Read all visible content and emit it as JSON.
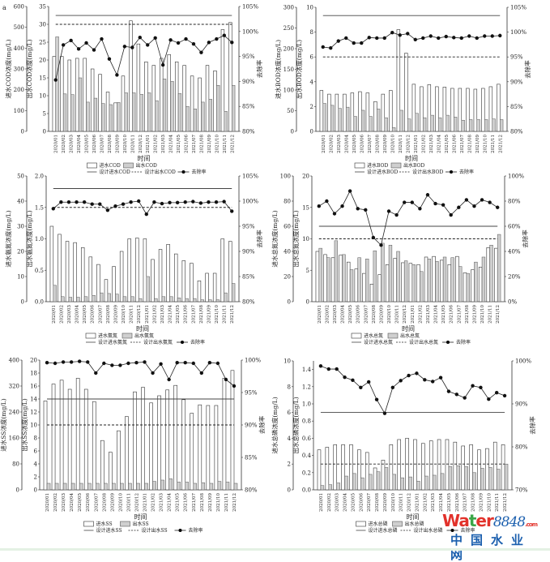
{
  "panel_label": "a",
  "watermark": {
    "brand": "water8848.com",
    "brand_cn": "中国水业网"
  },
  "colors": {
    "influent_bar": "#ffffff",
    "effluent_bar": "#cfcfcf",
    "lines": "#333333",
    "watermark_red": "#e2322b",
    "watermark_green": "#3aa548",
    "watermark_blue": "#1b5fae"
  },
  "chart_data": [
    {
      "type": "bar+line",
      "indicator": "COD",
      "categories": [
        "2020/01",
        "2020/02",
        "2020/03",
        "2020/04",
        "2020/05",
        "2020/06",
        "2020/07",
        "2020/08",
        "2020/09",
        "2020/10",
        "2020/11",
        "2020/12",
        "2021/01",
        "2021/02",
        "2021/03",
        "2021/04",
        "2021/05",
        "2021/06",
        "2021/07",
        "2021/08",
        "2021/09",
        "2021/10",
        "2021/11",
        "2021/12"
      ],
      "xlabel": "时间",
      "y_outer": {
        "label": "进水COD浓度(mg/L)",
        "ylim": [
          0,
          600
        ],
        "ticks": [
          "0",
          "100",
          "200",
          "300",
          "400",
          "500",
          "600"
        ]
      },
      "y_inner": {
        "label": "出水COD浓度(mg/L)",
        "ylim": [
          0,
          35
        ],
        "ticks": [
          "0",
          "5",
          "10",
          "15",
          "20",
          "25",
          "30",
          "35"
        ]
      },
      "y_right": {
        "label": "去除率",
        "ylim": [
          80,
          105
        ],
        "ticks": [
          "80%",
          "85%",
          "90%",
          "95%",
          "100%",
          "105%"
        ]
      },
      "series": [
        {
          "name": "进水COD",
          "kind": "bar",
          "axis": "outer",
          "values": [
            360,
            360,
            343,
            351,
            351,
            300,
            274,
            189,
            137,
            266,
            531,
            420,
            334,
            317,
            351,
            369,
            334,
            317,
            266,
            257,
            317,
            291,
            489,
            523
          ]
        },
        {
          "name": "出水COD",
          "kind": "bar",
          "axis": "inner",
          "values": [
            26.5,
            10.5,
            10.3,
            15,
            8.2,
            9.3,
            7.8,
            7.5,
            8.1,
            10.8,
            10.8,
            10.4,
            10.8,
            8.6,
            14.7,
            14,
            10.6,
            7,
            6.3,
            8.2,
            9,
            12.9,
            5.6,
            12.9
          ]
        },
        {
          "name": "设计进水COD",
          "kind": "hline",
          "axis": "outer",
          "value": 557
        },
        {
          "name": "设计出水COD",
          "kind": "hline-dashed",
          "axis": "inner",
          "value": 30
        },
        {
          "name": "去除率",
          "kind": "line-marker",
          "axis": "right",
          "values": [
            90.3,
            97.3,
            98.2,
            96.5,
            97.7,
            96.3,
            98.5,
            94.5,
            91.3,
            97,
            96.8,
            98.8,
            97.3,
            98.7,
            93.3,
            98.3,
            97.7,
            98.5,
            97.5,
            95.8,
            97.8,
            98.5,
            99.2,
            97.8
          ]
        }
      ]
    },
    {
      "type": "bar+line",
      "indicator": "BOD",
      "categories": [
        "2020/01",
        "2020/02",
        "2020/03",
        "2020/04",
        "2020/05",
        "2020/06",
        "2020/07",
        "2020/08",
        "2020/09",
        "2020/10",
        "2020/11",
        "2020/12",
        "2021/01",
        "2021/02",
        "2021/03",
        "2021/04",
        "2021/05",
        "2021/06",
        "2021/07",
        "2021/08",
        "2021/09",
        "2021/10",
        "2021/11",
        "2021/12"
      ],
      "xlabel": "时间",
      "y_outer": {
        "label": "进水BOD浓度(mg/L)",
        "ylim": [
          0,
          300
        ],
        "ticks": [
          "0",
          "50",
          "100",
          "150",
          "200",
          "250",
          "300"
        ]
      },
      "y_inner": {
        "label": "出水BOD浓度(mg/L)",
        "ylim": [
          0,
          10
        ],
        "ticks": [
          "0",
          "2",
          "4",
          "6",
          "8",
          "10"
        ]
      },
      "y_right": {
        "label": "去除率",
        "ylim": [
          80,
          105
        ],
        "ticks": [
          "80%",
          "85%",
          "90%",
          "95%",
          "100%",
          "105%"
        ]
      },
      "series": [
        {
          "name": "进水BOD",
          "kind": "bar",
          "axis": "outer",
          "values": [
            99,
            90,
            90,
            90,
            93,
            96,
            93,
            72,
            90,
            99,
            246,
            189,
            114,
            108,
            113,
            108,
            107,
            104,
            104,
            104,
            102,
            104,
            108,
            114
          ]
        },
        {
          "name": "出水BOD",
          "kind": "bar",
          "axis": "inner",
          "values": [
            2.25,
            2.1,
            1.85,
            1.95,
            1.2,
            1.7,
            1.2,
            1.8,
            1.1,
            0.3,
            1.7,
            1.0,
            1.45,
            1.1,
            1.3,
            1.1,
            1.3,
            1.15,
            0.9,
            0.95,
            0.95,
            0.95,
            1.0,
            0.95
          ]
        },
        {
          "name": "设计进水BOD",
          "kind": "hline",
          "axis": "outer",
          "value": 280
        },
        {
          "name": "设计出水BOD",
          "kind": "hline-dashed",
          "axis": "inner",
          "value": 6
        },
        {
          "name": "去除率",
          "kind": "line-marker",
          "axis": "right",
          "values": [
            97,
            96.8,
            98.2,
            98.8,
            97.8,
            97.8,
            98.9,
            98.8,
            98.8,
            99.9,
            99.4,
            99.7,
            98.5,
            98.8,
            99.2,
            98.8,
            99.1,
            98.9,
            98.8,
            99.2,
            98.8,
            99.2,
            99.2,
            99.3
          ]
        }
      ]
    },
    {
      "type": "bar+line",
      "indicator": "氨氮",
      "categories": [
        "2020/01",
        "2020/02",
        "2020/03",
        "2020/04",
        "2020/05",
        "2020/06",
        "2020/07",
        "2020/08",
        "2020/09",
        "2020/10",
        "2020/11",
        "2020/12",
        "2021/01",
        "2021/02",
        "2021/03",
        "2021/04",
        "2021/05",
        "2021/06",
        "2021/07",
        "2021/08",
        "2021/09",
        "2021/10",
        "2021/11",
        "2021/12"
      ],
      "xlabel": "时间",
      "y_outer": {
        "label": "进水氨氮浓度(mg/L)",
        "ylim": [
          0,
          50
        ],
        "ticks": [
          "0",
          "10",
          "20",
          "30",
          "40",
          "50"
        ]
      },
      "y_inner": {
        "label": "出水氨氮浓度(mg/L)",
        "ylim": [
          0,
          2
        ],
        "ticks": [
          "0.0",
          "0.5",
          "1.0",
          "1.5",
          "2.0"
        ]
      },
      "y_right": {
        "label": "去除率",
        "ylim": [
          80,
          105
        ],
        "ticks": [
          "80%",
          "85%",
          "90%",
          "95%",
          "100%",
          "105%"
        ]
      },
      "series": [
        {
          "name": "进水氨氮",
          "kind": "bar",
          "axis": "outer",
          "values": [
            30,
            26.8,
            24,
            23.5,
            21.5,
            17.8,
            14.8,
            8.8,
            14,
            20,
            25,
            25.3,
            25,
            16.8,
            20.8,
            22.8,
            19,
            16.3,
            15.3,
            8.3,
            11.3,
            11.3,
            25,
            24
          ]
        },
        {
          "name": "出水氨氮",
          "kind": "bar",
          "axis": "inner",
          "values": [
            0.26,
            0.08,
            0.07,
            0.07,
            0.08,
            0.1,
            0.14,
            0.13,
            0.12,
            0.08,
            0.08,
            0.05,
            0.4,
            0.05,
            0.08,
            0.08,
            0.06,
            0.05,
            0.05,
            0.03,
            0.03,
            0.03,
            0.14,
            0.29
          ]
        },
        {
          "name": "设计进水氨氮",
          "kind": "hline",
          "axis": "outer",
          "value": 45
        },
        {
          "name": "设计出水氨氮",
          "kind": "hline-dashed",
          "axis": "inner",
          "value": 1.5
        },
        {
          "name": "去除率",
          "kind": "line-marker",
          "axis": "right",
          "values": [
            98.5,
            99.8,
            99.8,
            99.8,
            99.8,
            99.4,
            99.4,
            98.2,
            99.0,
            99.4,
            99.8,
            100,
            97.4,
            99.8,
            99.5,
            99.7,
            99.7,
            99.8,
            99.9,
            99.6,
            99.8,
            99.8,
            99.9,
            98.0
          ]
        }
      ]
    },
    {
      "type": "bar+line",
      "indicator": "总氮",
      "categories": [
        "2020/01",
        "2020/02",
        "2020/03",
        "2020/04",
        "2020/05",
        "2020/06",
        "2020/07",
        "2020/08",
        "2020/09",
        "2020/10",
        "2020/11",
        "2020/12",
        "2021/01",
        "2021/02",
        "2021/03",
        "2021/04",
        "2021/05",
        "2021/06",
        "2021/07",
        "2021/08",
        "2021/09",
        "2021/10",
        "2021/11",
        "2021/12"
      ],
      "xlabel": "时间",
      "y_outer": {
        "label": "进水总氮浓度(mg/L)",
        "ylim": [
          0,
          100
        ],
        "ticks": [
          "0",
          "20",
          "40",
          "60",
          "80",
          "100"
        ]
      },
      "y_inner": {
        "label": "出水总氮浓度(mg/L)",
        "ylim": [
          0,
          20
        ],
        "ticks": [
          "0",
          "5",
          "10",
          "15",
          "20"
        ]
      },
      "y_right": {
        "label": "去除率",
        "ylim": [
          0,
          100
        ],
        "ticks": [
          "0%",
          "20%",
          "40%",
          "60%",
          "80%",
          "100%"
        ]
      },
      "series": [
        {
          "name": "进水总氮",
          "kind": "bar",
          "axis": "outer",
          "values": [
            40,
            37.5,
            35,
            37,
            31.5,
            26,
            22.5,
            14,
            21.5,
            29.5,
            34.5,
            31,
            30.5,
            29.5,
            35.5,
            36,
            33,
            29.5,
            36,
            23,
            25.5,
            27.5,
            43,
            42.5
          ]
        },
        {
          "name": "出水总氮",
          "kind": "bar",
          "axis": "inner",
          "values": [
            8.5,
            7,
            9.7,
            7.5,
            5.1,
            7,
            6.8,
            8.1,
            9.3,
            9,
            8,
            6.5,
            5.9,
            4.8,
            6.8,
            6.4,
            7.1,
            7,
            5.6,
            4.5,
            6.3,
            7.1,
            9,
            10.7
          ]
        },
        {
          "name": "设计进水总氮",
          "kind": "hline",
          "axis": "outer",
          "value": 60
        },
        {
          "name": "设计出水总氮",
          "kind": "hline-dashed",
          "axis": "inner",
          "value": 10
        },
        {
          "name": "去除率",
          "kind": "line-marker",
          "axis": "right",
          "values": [
            76,
            80,
            70,
            76,
            88,
            74,
            73,
            51,
            45,
            72,
            69,
            79,
            79,
            74,
            85,
            78,
            77,
            69,
            75,
            81,
            76,
            81,
            79,
            75
          ]
        }
      ]
    },
    {
      "type": "bar+line",
      "indicator": "SS",
      "categories": [
        "2020/01",
        "2020/02",
        "2020/03",
        "2020/04",
        "2020/05",
        "2020/06",
        "2020/07",
        "2020/08",
        "2020/09",
        "2020/10",
        "2020/11",
        "2020/12",
        "2021/01",
        "2021/02",
        "2021/03",
        "2021/04",
        "2021/05",
        "2021/06",
        "2021/07",
        "2021/08",
        "2021/09",
        "2021/10",
        "2021/11",
        "2021/12"
      ],
      "xlabel": "时间",
      "y_outer": {
        "label": "进水SS浓度(mg/L)",
        "ylim": [
          0,
          400
        ],
        "ticks": [
          "0",
          "80",
          "160",
          "240",
          "320",
          "400"
        ]
      },
      "y_inner": {
        "label": "出水SS浓度(mg/L)",
        "ylim": [
          0,
          20
        ],
        "ticks": [
          "0",
          "2",
          "4",
          "6",
          "8",
          "10",
          "12",
          "14",
          "16",
          "18",
          "20"
        ]
      },
      "y_right": {
        "label": "去除率",
        "ylim": [
          80,
          100
        ],
        "ticks": [
          "80%",
          "85%",
          "90%",
          "95%",
          "100%"
        ]
      },
      "series": [
        {
          "name": "进水SS",
          "kind": "bar",
          "axis": "outer",
          "values": [
            274,
            326,
            338,
            310,
            344,
            310,
            272,
            152,
            116,
            182,
            226,
            302,
            316,
            268,
            290,
            308,
            322,
            278,
            236,
            262,
            260,
            260,
            344,
            368
          ]
        },
        {
          "name": "出水SS",
          "kind": "bar",
          "axis": "inner",
          "values": [
            1,
            1,
            1,
            1,
            1,
            1,
            1,
            1,
            1,
            1,
            1,
            1,
            1,
            1.3,
            1.5,
            1.7,
            1.2,
            1.2,
            1,
            1.1,
            1,
            1.3,
            1.2,
            1
          ]
        },
        {
          "name": "设计进水SS",
          "kind": "hline",
          "axis": "outer",
          "value": 280
        },
        {
          "name": "设计出水SS",
          "kind": "hline-dashed",
          "axis": "inner",
          "value": 10
        },
        {
          "name": "去除率",
          "kind": "line-marker",
          "axis": "right",
          "values": [
            99.6,
            99.5,
            99.7,
            99.7,
            99.8,
            99.7,
            98,
            99.5,
            99.2,
            99.2,
            99.5,
            99.6,
            99.7,
            98,
            99.4,
            97,
            99.6,
            99.6,
            99.5,
            98,
            99.6,
            99.5,
            97,
            96
          ]
        }
      ]
    },
    {
      "type": "bar+line",
      "indicator": "总磷",
      "categories": [
        "2020/01",
        "2020/02",
        "2020/03",
        "2020/04",
        "2020/05",
        "2020/06",
        "2020/07",
        "2020/08",
        "2020/09",
        "2020/10",
        "2020/11",
        "2020/12",
        "2021/01",
        "2021/02",
        "2021/03",
        "2021/04",
        "2021/05",
        "2021/06",
        "2021/07",
        "2021/08",
        "2021/09",
        "2021/10",
        "2021/11",
        "2021/12"
      ],
      "xlabel": "时间",
      "y_outer": {
        "label": "进水总磷浓度(mg/L)",
        "ylim": [
          0,
          10
        ],
        "ticks": [
          "0",
          "2",
          "4",
          "6",
          "8",
          "10"
        ]
      },
      "y_inner": {
        "label": "出水总磷浓度(mg/L)",
        "ylim": [
          0,
          1.5
        ],
        "ticks": [
          "0.0",
          "0.2",
          "0.4",
          "0.6",
          "0.8",
          "1.0",
          "1.2",
          "1.4"
        ]
      },
      "y_right": {
        "label": "去除率",
        "ylim": [
          70,
          100
        ],
        "ticks": [
          "70%",
          "80%",
          "90%",
          "100%"
        ]
      },
      "series": [
        {
          "name": "进水总磷",
          "kind": "bar",
          "axis": "outer",
          "values": [
            3.1,
            3.3,
            3.5,
            3.5,
            3.5,
            3.1,
            2.9,
            1.7,
            2.3,
            3.5,
            3.9,
            4.0,
            3.9,
            3.6,
            3.8,
            3.9,
            3.9,
            3.7,
            3.4,
            3.5,
            3.1,
            3.2,
            3.7,
            3.5
          ]
        },
        {
          "name": "出水总磷",
          "kind": "bar",
          "axis": "inner",
          "values": [
            0.05,
            0.06,
            0.08,
            0.16,
            0.19,
            0.14,
            0.18,
            0.21,
            0.26,
            0.18,
            0.14,
            0.15,
            0.1,
            0.16,
            0.17,
            0.19,
            0.27,
            0.28,
            0.27,
            0.2,
            0.25,
            0.26,
            0.24,
            0.3
          ]
        },
        {
          "name": "设计进水总磷",
          "kind": "hline",
          "axis": "outer",
          "value": 6
        },
        {
          "name": "设计出水总磷",
          "kind": "hline-dashed",
          "axis": "inner",
          "value": 0.3
        },
        {
          "name": "去除率",
          "kind": "line-marker",
          "axis": "right",
          "values": [
            98.8,
            98.1,
            98.1,
            96.2,
            95.5,
            93.8,
            95.1,
            91.0,
            87.8,
            93.8,
            95.4,
            96.6,
            97.1,
            95.6,
            95.2,
            96.1,
            92.9,
            92.2,
            91.4,
            94.2,
            93.8,
            91.1,
            92.6,
            91.9
          ]
        }
      ]
    }
  ]
}
